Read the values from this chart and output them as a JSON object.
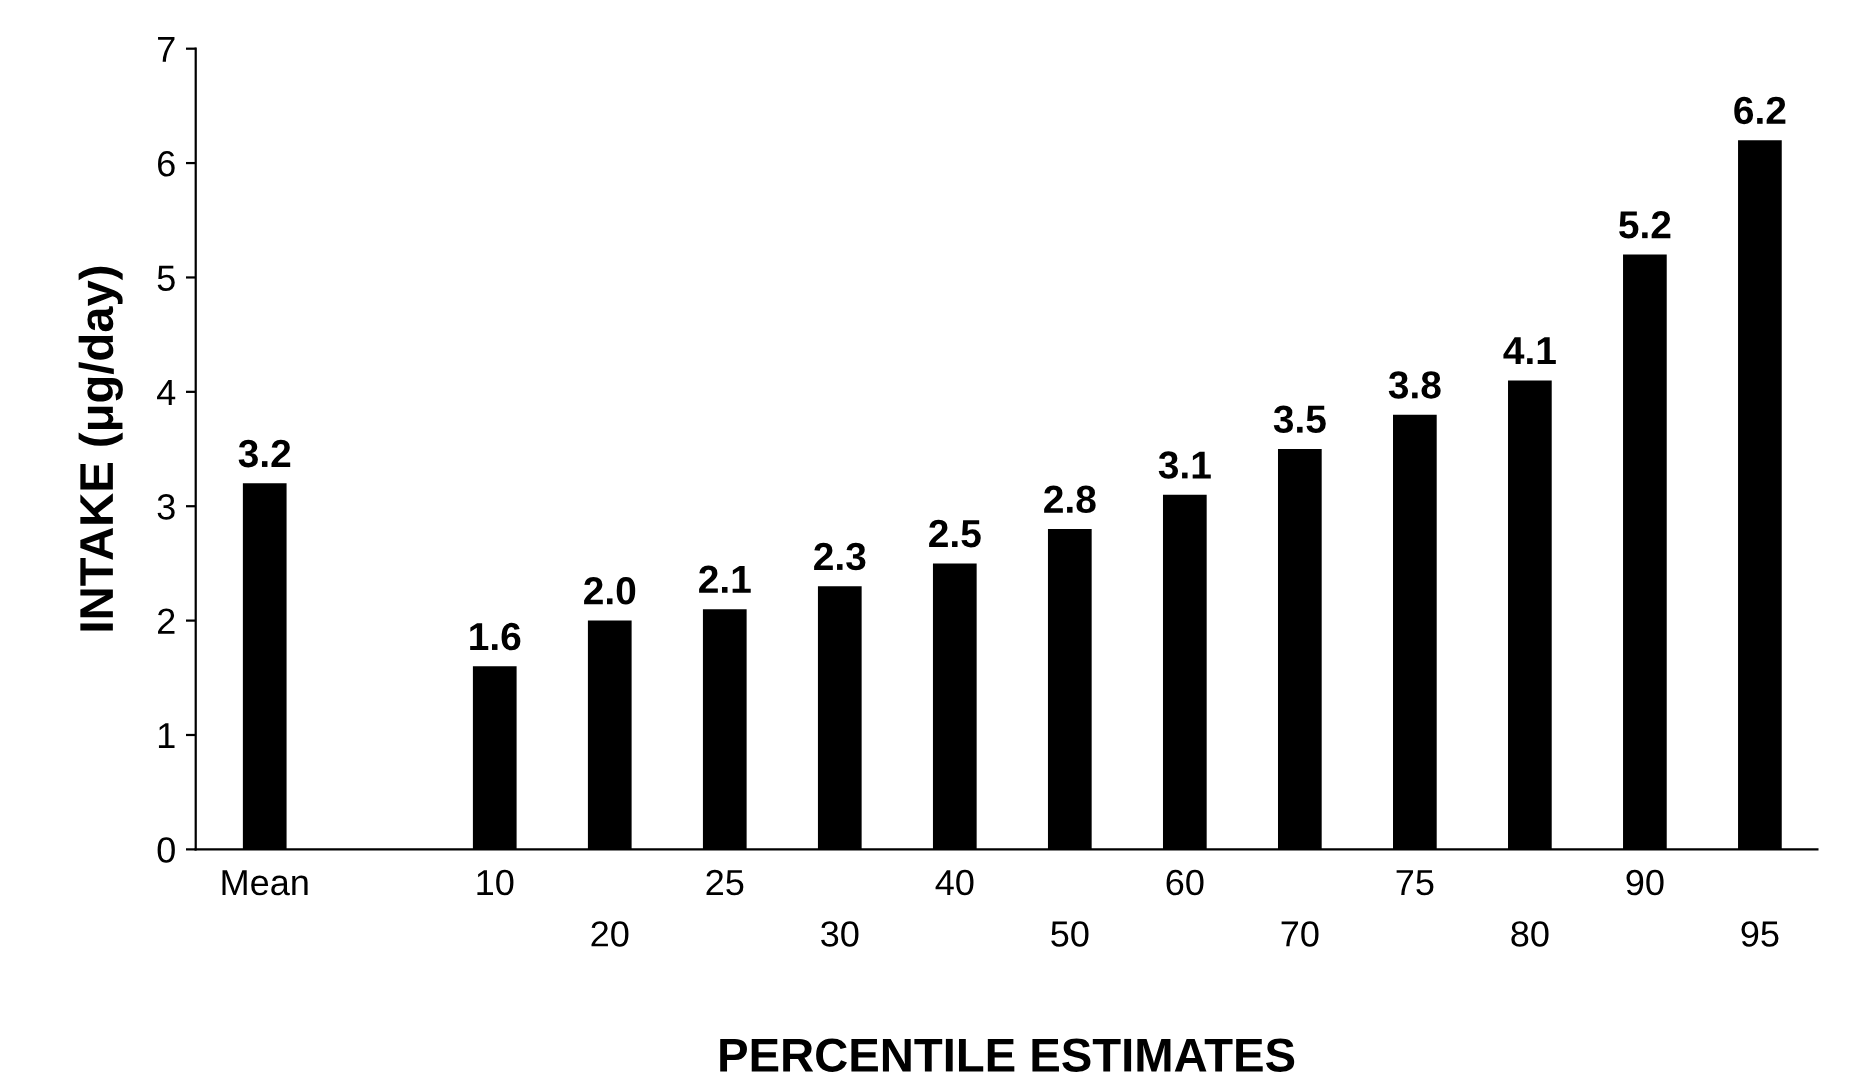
{
  "chart_data": {
    "type": "bar",
    "xlabel": "PERCENTILE ESTIMATES",
    "ylabel": "INTAKE (μg/day)",
    "categories": [
      "Mean",
      null,
      "10",
      "20",
      "25",
      "30",
      "40",
      "50",
      "60",
      "70",
      "75",
      "80",
      "90",
      "95"
    ],
    "values": [
      3.2,
      null,
      1.6,
      2.0,
      2.1,
      2.3,
      2.5,
      2.8,
      3.1,
      3.5,
      3.8,
      4.1,
      5.2,
      6.2
    ],
    "value_labels": [
      "3.2",
      null,
      "1.6",
      "2.0",
      "2.1",
      "2.3",
      "2.5",
      "2.8",
      "3.1",
      "3.5",
      "3.8",
      "4.1",
      "5.2",
      "6.2"
    ],
    "color": "#000000",
    "ylim": [
      0,
      7
    ],
    "yticks": [
      0,
      1,
      2,
      3,
      4,
      5,
      6,
      7
    ],
    "grid": false
  }
}
